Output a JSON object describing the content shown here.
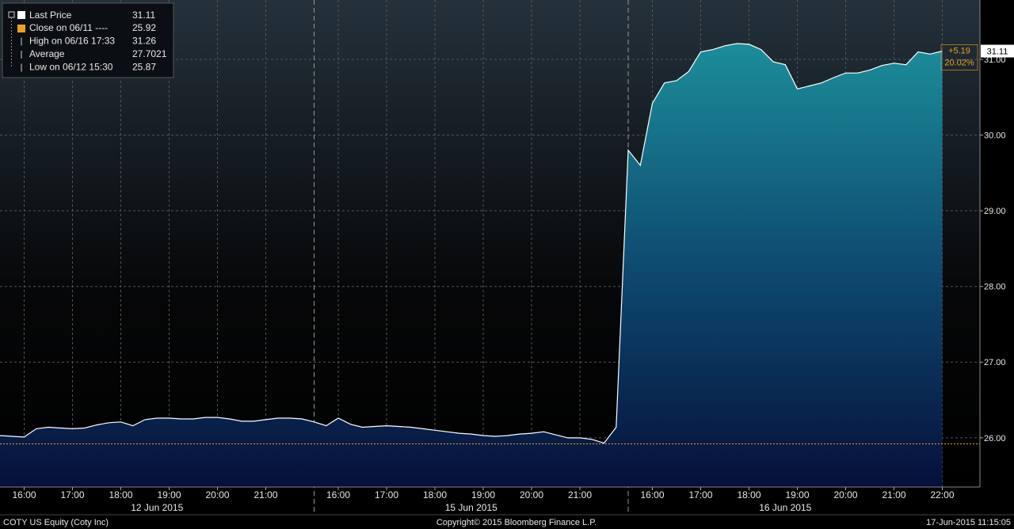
{
  "chart_data": {
    "type": "area",
    "series": [
      {
        "name": "Last Price",
        "color": "#ffffff",
        "values": [
          26.03,
          26.02,
          26.01,
          26.12,
          26.14,
          26.13,
          26.12,
          26.13,
          26.17,
          26.2,
          26.21,
          26.16,
          26.24,
          26.26,
          26.26,
          26.25,
          26.25,
          26.27,
          26.27,
          26.25,
          26.22,
          26.22,
          26.24,
          26.26,
          26.26,
          26.25,
          26.21,
          26.16,
          26.26,
          26.18,
          26.14,
          26.15,
          26.16,
          26.15,
          26.14,
          26.12,
          26.1,
          26.08,
          26.06,
          26.05,
          26.03,
          26.02,
          26.03,
          26.05,
          26.06,
          26.08,
          26.04,
          26.0,
          26.0,
          25.98,
          25.93,
          26.14,
          29.8,
          29.6,
          30.42,
          30.69,
          30.72,
          30.84,
          31.1,
          31.13,
          31.18,
          31.21,
          31.2,
          31.13,
          30.97,
          30.93,
          30.61,
          30.65,
          30.69,
          30.76,
          30.82,
          30.82,
          30.86,
          30.92,
          30.95,
          30.93,
          31.1,
          31.07,
          31.11
        ]
      }
    ],
    "x": [
      "12 Jun 2015 15:30",
      "12 Jun 2015 15:45",
      "12 Jun 2015 16:00",
      "12 Jun 2015 16:15",
      "12 Jun 2015 16:30",
      "12 Jun 2015 16:45",
      "12 Jun 2015 17:00",
      "12 Jun 2015 17:15",
      "12 Jun 2015 17:30",
      "12 Jun 2015 17:45",
      "12 Jun 2015 18:00",
      "12 Jun 2015 18:15",
      "12 Jun 2015 18:30",
      "12 Jun 2015 18:45",
      "12 Jun 2015 19:00",
      "12 Jun 2015 19:15",
      "12 Jun 2015 19:30",
      "12 Jun 2015 19:45",
      "12 Jun 2015 20:00",
      "12 Jun 2015 20:15",
      "12 Jun 2015 20:30",
      "12 Jun 2015 20:45",
      "12 Jun 2015 21:00",
      "12 Jun 2015 21:15",
      "12 Jun 2015 21:30",
      "12 Jun 2015 21:45",
      "15 Jun 2015 15:30",
      "15 Jun 2015 15:45",
      "15 Jun 2015 16:00",
      "15 Jun 2015 16:15",
      "15 Jun 2015 16:30",
      "15 Jun 2015 16:45",
      "15 Jun 2015 17:00",
      "15 Jun 2015 17:15",
      "15 Jun 2015 17:30",
      "15 Jun 2015 17:45",
      "15 Jun 2015 18:00",
      "15 Jun 2015 18:15",
      "15 Jun 2015 18:30",
      "15 Jun 2015 18:45",
      "15 Jun 2015 19:00",
      "15 Jun 2015 19:15",
      "15 Jun 2015 19:30",
      "15 Jun 2015 19:45",
      "15 Jun 2015 20:00",
      "15 Jun 2015 20:15",
      "15 Jun 2015 20:30",
      "15 Jun 2015 20:45",
      "15 Jun 2015 21:00",
      "15 Jun 2015 21:15",
      "15 Jun 2015 21:30",
      "15 Jun 2015 21:45",
      "16 Jun 2015 15:30",
      "16 Jun 2015 15:45",
      "16 Jun 2015 16:00",
      "16 Jun 2015 16:15",
      "16 Jun 2015 16:30",
      "16 Jun 2015 16:45",
      "16 Jun 2015 17:00",
      "16 Jun 2015 17:15",
      "16 Jun 2015 17:30",
      "16 Jun 2015 17:45",
      "16 Jun 2015 18:00",
      "16 Jun 2015 18:15",
      "16 Jun 2015 18:30",
      "16 Jun 2015 18:45",
      "16 Jun 2015 19:00",
      "16 Jun 2015 19:15",
      "16 Jun 2015 19:30",
      "16 Jun 2015 19:45",
      "16 Jun 2015 20:00",
      "16 Jun 2015 20:15",
      "16 Jun 2015 20:30",
      "16 Jun 2015 20:45",
      "16 Jun 2015 21:00",
      "16 Jun 2015 21:15",
      "16 Jun 2015 21:30",
      "16 Jun 2015 21:45",
      "16 Jun 2015 22:00"
    ],
    "days": [
      "12 Jun 2015",
      "15 Jun 2015",
      "16 Jun 2015"
    ],
    "xticks": [
      {
        "value": "12 Jun 2015 16:00",
        "label": "16:00"
      },
      {
        "value": "12 Jun 2015 17:00",
        "label": "17:00"
      },
      {
        "value": "12 Jun 2015 18:00",
        "label": "18:00"
      },
      {
        "value": "12 Jun 2015 19:00",
        "label": "19:00"
      },
      {
        "value": "12 Jun 2015 20:00",
        "label": "20:00"
      },
      {
        "value": "12 Jun 2015 21:00",
        "label": "21:00"
      },
      {
        "value": "15 Jun 2015 16:00",
        "label": "16:00"
      },
      {
        "value": "15 Jun 2015 17:00",
        "label": "17:00"
      },
      {
        "value": "15 Jun 2015 18:00",
        "label": "18:00"
      },
      {
        "value": "15 Jun 2015 19:00",
        "label": "19:00"
      },
      {
        "value": "15 Jun 2015 20:00",
        "label": "20:00"
      },
      {
        "value": "15 Jun 2015 21:00",
        "label": "21:00"
      },
      {
        "value": "16 Jun 2015 16:00",
        "label": "16:00"
      },
      {
        "value": "16 Jun 2015 17:00",
        "label": "17:00"
      },
      {
        "value": "16 Jun 2015 18:00",
        "label": "18:00"
      },
      {
        "value": "16 Jun 2015 19:00",
        "label": "19:00"
      },
      {
        "value": "16 Jun 2015 20:00",
        "label": "20:00"
      },
      {
        "value": "16 Jun 2015 21:00",
        "label": "21:00"
      },
      {
        "value": "16 Jun 2015 22:00",
        "label": "22:00"
      }
    ],
    "ylim": [
      25.35,
      31.785
    ],
    "yticks": [
      {
        "value": 26,
        "label": "26.00"
      },
      {
        "value": 27,
        "label": "27.00"
      },
      {
        "value": 28,
        "label": "28.00"
      },
      {
        "value": 29,
        "label": "29.00"
      },
      {
        "value": 30,
        "label": "30.00"
      },
      {
        "value": 31,
        "label": "31.00"
      }
    ],
    "grid": true,
    "last": 31.11,
    "change_label": "+5.19",
    "change_pct": "20.02%",
    "legend_stats": [
      {
        "label": "Close on 06/11 ----",
        "value": 25.92,
        "color": "#f0a020"
      },
      {
        "label": "High on 06/16 17:33",
        "value": 31.26
      },
      {
        "label": "Average",
        "value": 27.7021
      },
      {
        "label": "Low on 06/12 15:30",
        "value": 25.87
      }
    ],
    "footer_left": "COTY US Equity (Coty Inc)",
    "copyright": "Copyright© 2015 Bloomberg Finance L.P.",
    "timestamp": "17-Jun-2015 11:15:05"
  }
}
